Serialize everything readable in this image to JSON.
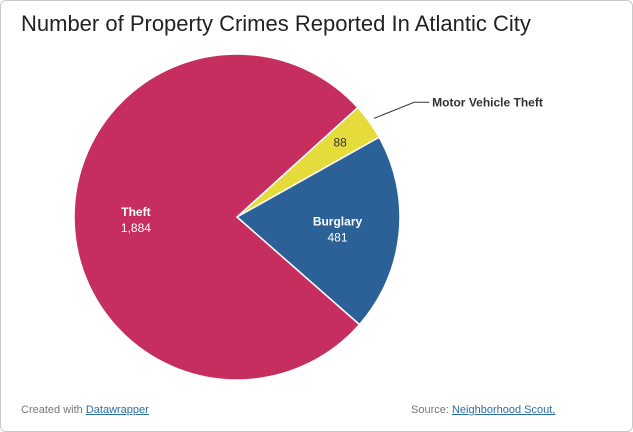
{
  "chart_data": {
    "type": "pie",
    "title": "Number of Property Crimes Reported In Atlantic City",
    "categories": [
      "Motor Vehicle Theft",
      "Burglary",
      "Theft"
    ],
    "values": [
      88,
      481,
      1884
    ],
    "value_labels": [
      "88",
      "481",
      "1,884"
    ],
    "colors": [
      "#e5dc3b",
      "#2b6196",
      "#c72e60"
    ]
  },
  "footer": {
    "credit_prefix": "Created with",
    "credit_link": "Datawrapper",
    "source_prefix": "Source:",
    "source_link": "Neighborhood Scout,"
  }
}
